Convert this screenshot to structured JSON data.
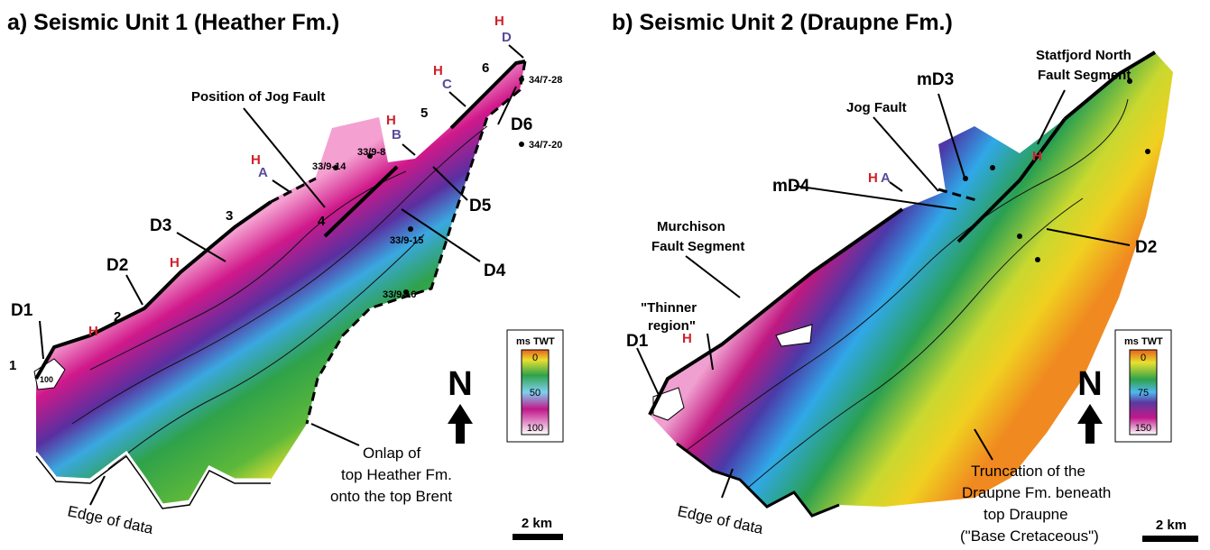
{
  "panels": [
    {
      "title": "a) Seismic Unit 1 (Heather Fm.)",
      "labels": [
        "Position of Jog Fault",
        "H",
        "A",
        "H",
        "B",
        "H",
        "C",
        "H",
        "D",
        "6",
        "5",
        "4",
        "3",
        "2",
        "1",
        "D1",
        "D2",
        "D3",
        "D4",
        "D5",
        "D6",
        "H",
        "H",
        "34/7-28",
        "34/7-20",
        "33/9-8",
        "33/9-14",
        "33/9-15",
        "33/9-16",
        "Edge of data",
        "Onlap of",
        "top Heather Fm.",
        "onto the top Brent",
        "100"
      ],
      "legend": {
        "title": "ms TWT",
        "ticks": [
          "0",
          "50",
          "100"
        ]
      },
      "north": "N",
      "scale": "2 km"
    },
    {
      "title": "b) Seismic Unit 2 (Draupne Fm.)",
      "labels": [
        "Statfjord North",
        "Fault Segment",
        "mD3",
        "Jog Fault",
        "H",
        "A",
        "mD4",
        "Murchison",
        "Fault Segment",
        "D2",
        "\"Thinner",
        "region\"",
        "D1",
        "H",
        "H",
        "Edge of data",
        "Truncation of  the",
        "Draupne Fm. beneath",
        "top Draupne",
        "(\"Base Cretaceous\")"
      ],
      "legend": {
        "title": "ms TWT",
        "ticks": [
          "0",
          "75",
          "150"
        ]
      },
      "north": "N",
      "scale": "2 km"
    }
  ]
}
